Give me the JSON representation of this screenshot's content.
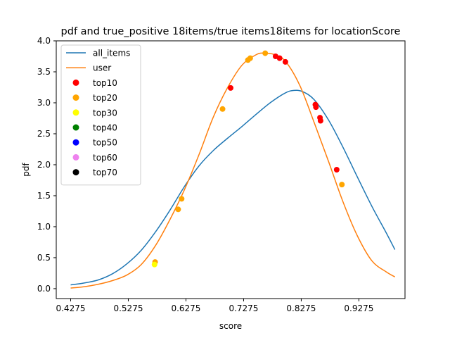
{
  "chart_data": {
    "type": "line",
    "title": "pdf and true_positive 18items/true items18items for locationScore",
    "xlabel": "score",
    "ylabel": "pdf",
    "xlim": [
      0.4025,
      1.0075
    ],
    "ylim": [
      -0.16,
      4.0
    ],
    "xticks": [
      0.4275,
      0.5275,
      0.6275,
      0.7275,
      0.8275,
      0.9275
    ],
    "xtick_labels": [
      "0.4275",
      "0.5275",
      "0.6275",
      "0.7275",
      "0.8275",
      "0.9275"
    ],
    "yticks": [
      0.0,
      0.5,
      1.0,
      1.5,
      2.0,
      2.5,
      3.0,
      3.5,
      4.0
    ],
    "ytick_labels": [
      "0.0",
      "0.5",
      "1.0",
      "1.5",
      "2.0",
      "2.5",
      "3.0",
      "3.5",
      "4.0"
    ],
    "grid": false,
    "legend_position": "upper left",
    "series": [
      {
        "name": "all_items",
        "kind": "line",
        "color": "#1f77b4",
        "x": [
          0.4275,
          0.45,
          0.475,
          0.5,
          0.525,
          0.55,
          0.575,
          0.6,
          0.625,
          0.65,
          0.675,
          0.7,
          0.725,
          0.75,
          0.775,
          0.8,
          0.815,
          0.83,
          0.85,
          0.875,
          0.9,
          0.925,
          0.95,
          0.975,
          0.99
        ],
        "y": [
          0.06,
          0.09,
          0.14,
          0.24,
          0.4,
          0.62,
          0.92,
          1.27,
          1.65,
          1.98,
          2.23,
          2.43,
          2.62,
          2.82,
          3.01,
          3.16,
          3.2,
          3.18,
          3.05,
          2.72,
          2.28,
          1.8,
          1.33,
          0.9,
          0.63
        ]
      },
      {
        "name": "user",
        "kind": "line",
        "color": "#ff7f0e",
        "x": [
          0.4275,
          0.45,
          0.475,
          0.5,
          0.525,
          0.55,
          0.575,
          0.6,
          0.625,
          0.65,
          0.675,
          0.7,
          0.725,
          0.75,
          0.765,
          0.78,
          0.8,
          0.825,
          0.85,
          0.875,
          0.9,
          0.925,
          0.95,
          0.975,
          0.99
        ],
        "y": [
          0.01,
          0.03,
          0.07,
          0.13,
          0.22,
          0.39,
          0.7,
          1.12,
          1.6,
          2.16,
          2.77,
          3.25,
          3.61,
          3.78,
          3.8,
          3.78,
          3.67,
          3.28,
          2.68,
          2.05,
          1.4,
          0.85,
          0.45,
          0.27,
          0.19
        ]
      },
      {
        "name": "top10",
        "kind": "scatter",
        "color": "#ff0000",
        "x": [
          0.705,
          0.783,
          0.79,
          0.8,
          0.852,
          0.853,
          0.86,
          0.861,
          0.889
        ],
        "y": [
          3.24,
          3.75,
          3.72,
          3.66,
          2.97,
          2.93,
          2.76,
          2.71,
          1.92
        ]
      },
      {
        "name": "top20",
        "kind": "scatter",
        "color": "#ffa500",
        "x": [
          0.574,
          0.614,
          0.62,
          0.691,
          0.735,
          0.739,
          0.765,
          0.898
        ],
        "y": [
          0.43,
          1.28,
          1.45,
          2.9,
          3.69,
          3.72,
          3.8,
          1.68
        ]
      },
      {
        "name": "top30",
        "kind": "scatter",
        "color": "#ffff00",
        "x": [
          0.573
        ],
        "y": [
          0.39
        ]
      },
      {
        "name": "top40",
        "kind": "scatter",
        "color": "#008000",
        "x": [],
        "y": []
      },
      {
        "name": "top50",
        "kind": "scatter",
        "color": "#0000ff",
        "x": [],
        "y": []
      },
      {
        "name": "top60",
        "kind": "scatter",
        "color": "#ee82ee",
        "x": [],
        "y": []
      },
      {
        "name": "top70",
        "kind": "scatter",
        "color": "#000000",
        "x": [],
        "y": []
      }
    ]
  }
}
